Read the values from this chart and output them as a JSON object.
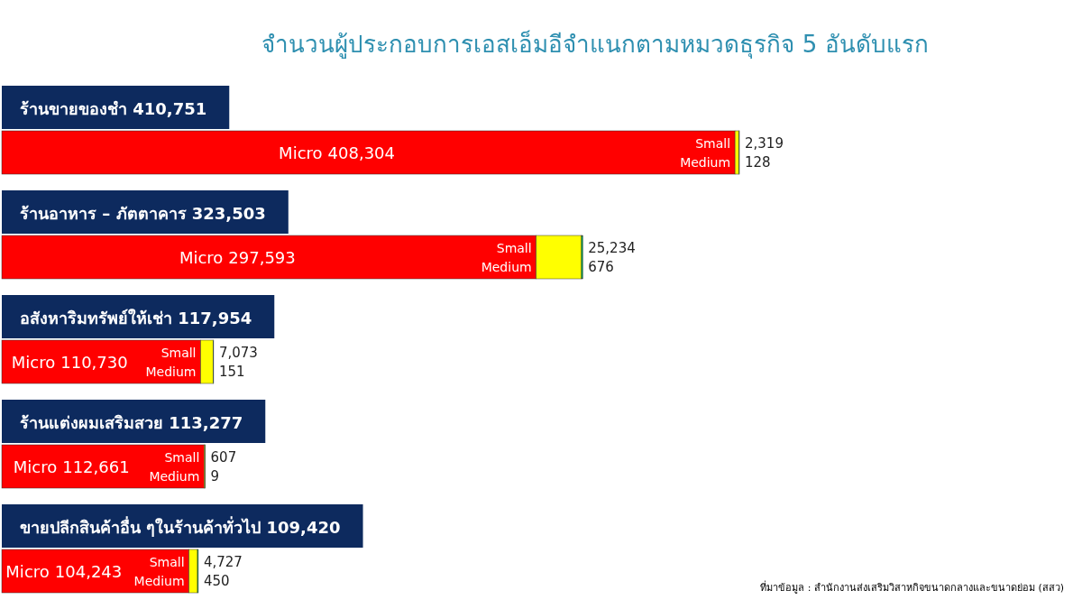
{
  "chart_data": {
    "type": "bar",
    "orientation": "horizontal",
    "stacked": true,
    "title": "จำนวนผู้ประกอบการเอสเอ็มอีจำแนกตามหมวดธุรกิจ 5 อันดับแรก",
    "categories": [
      "ร้านขายของชำ 410,751",
      "ร้านอาหาร – ภัตตาคาร 323,503",
      "อสังหาริมทรัพย์ให้เช่า 117,954",
      "ร้านแต่งผมเสริมสวย 113,277",
      "ขายปลีกสินค้าอื่น ๆในร้านค้าทั่วไป 109,420"
    ],
    "series": [
      {
        "name": "Micro",
        "color": "#ff0000",
        "values": [
          408304,
          297593,
          110730,
          112661,
          104243
        ],
        "value_labels": [
          "408,304",
          "297,593",
          "110,730",
          "112,661",
          "104,243"
        ]
      },
      {
        "name": "Small",
        "color": "#ffff00",
        "values": [
          2319,
          25234,
          7073,
          607,
          4727
        ],
        "value_labels": [
          "2,319",
          "25,234",
          "7,073",
          "607",
          "4,727"
        ]
      },
      {
        "name": "Medium",
        "color": "#00b050",
        "values": [
          128,
          676,
          151,
          9,
          450
        ],
        "value_labels": [
          "128",
          "676",
          "151",
          "9",
          "450"
        ]
      }
    ],
    "annotations": [
      "ที่มาข้อมูล : สำนักงานส่งเสริมวิสาหกิจขนาดกลางและขนาดย่อม (สสว)"
    ]
  }
}
